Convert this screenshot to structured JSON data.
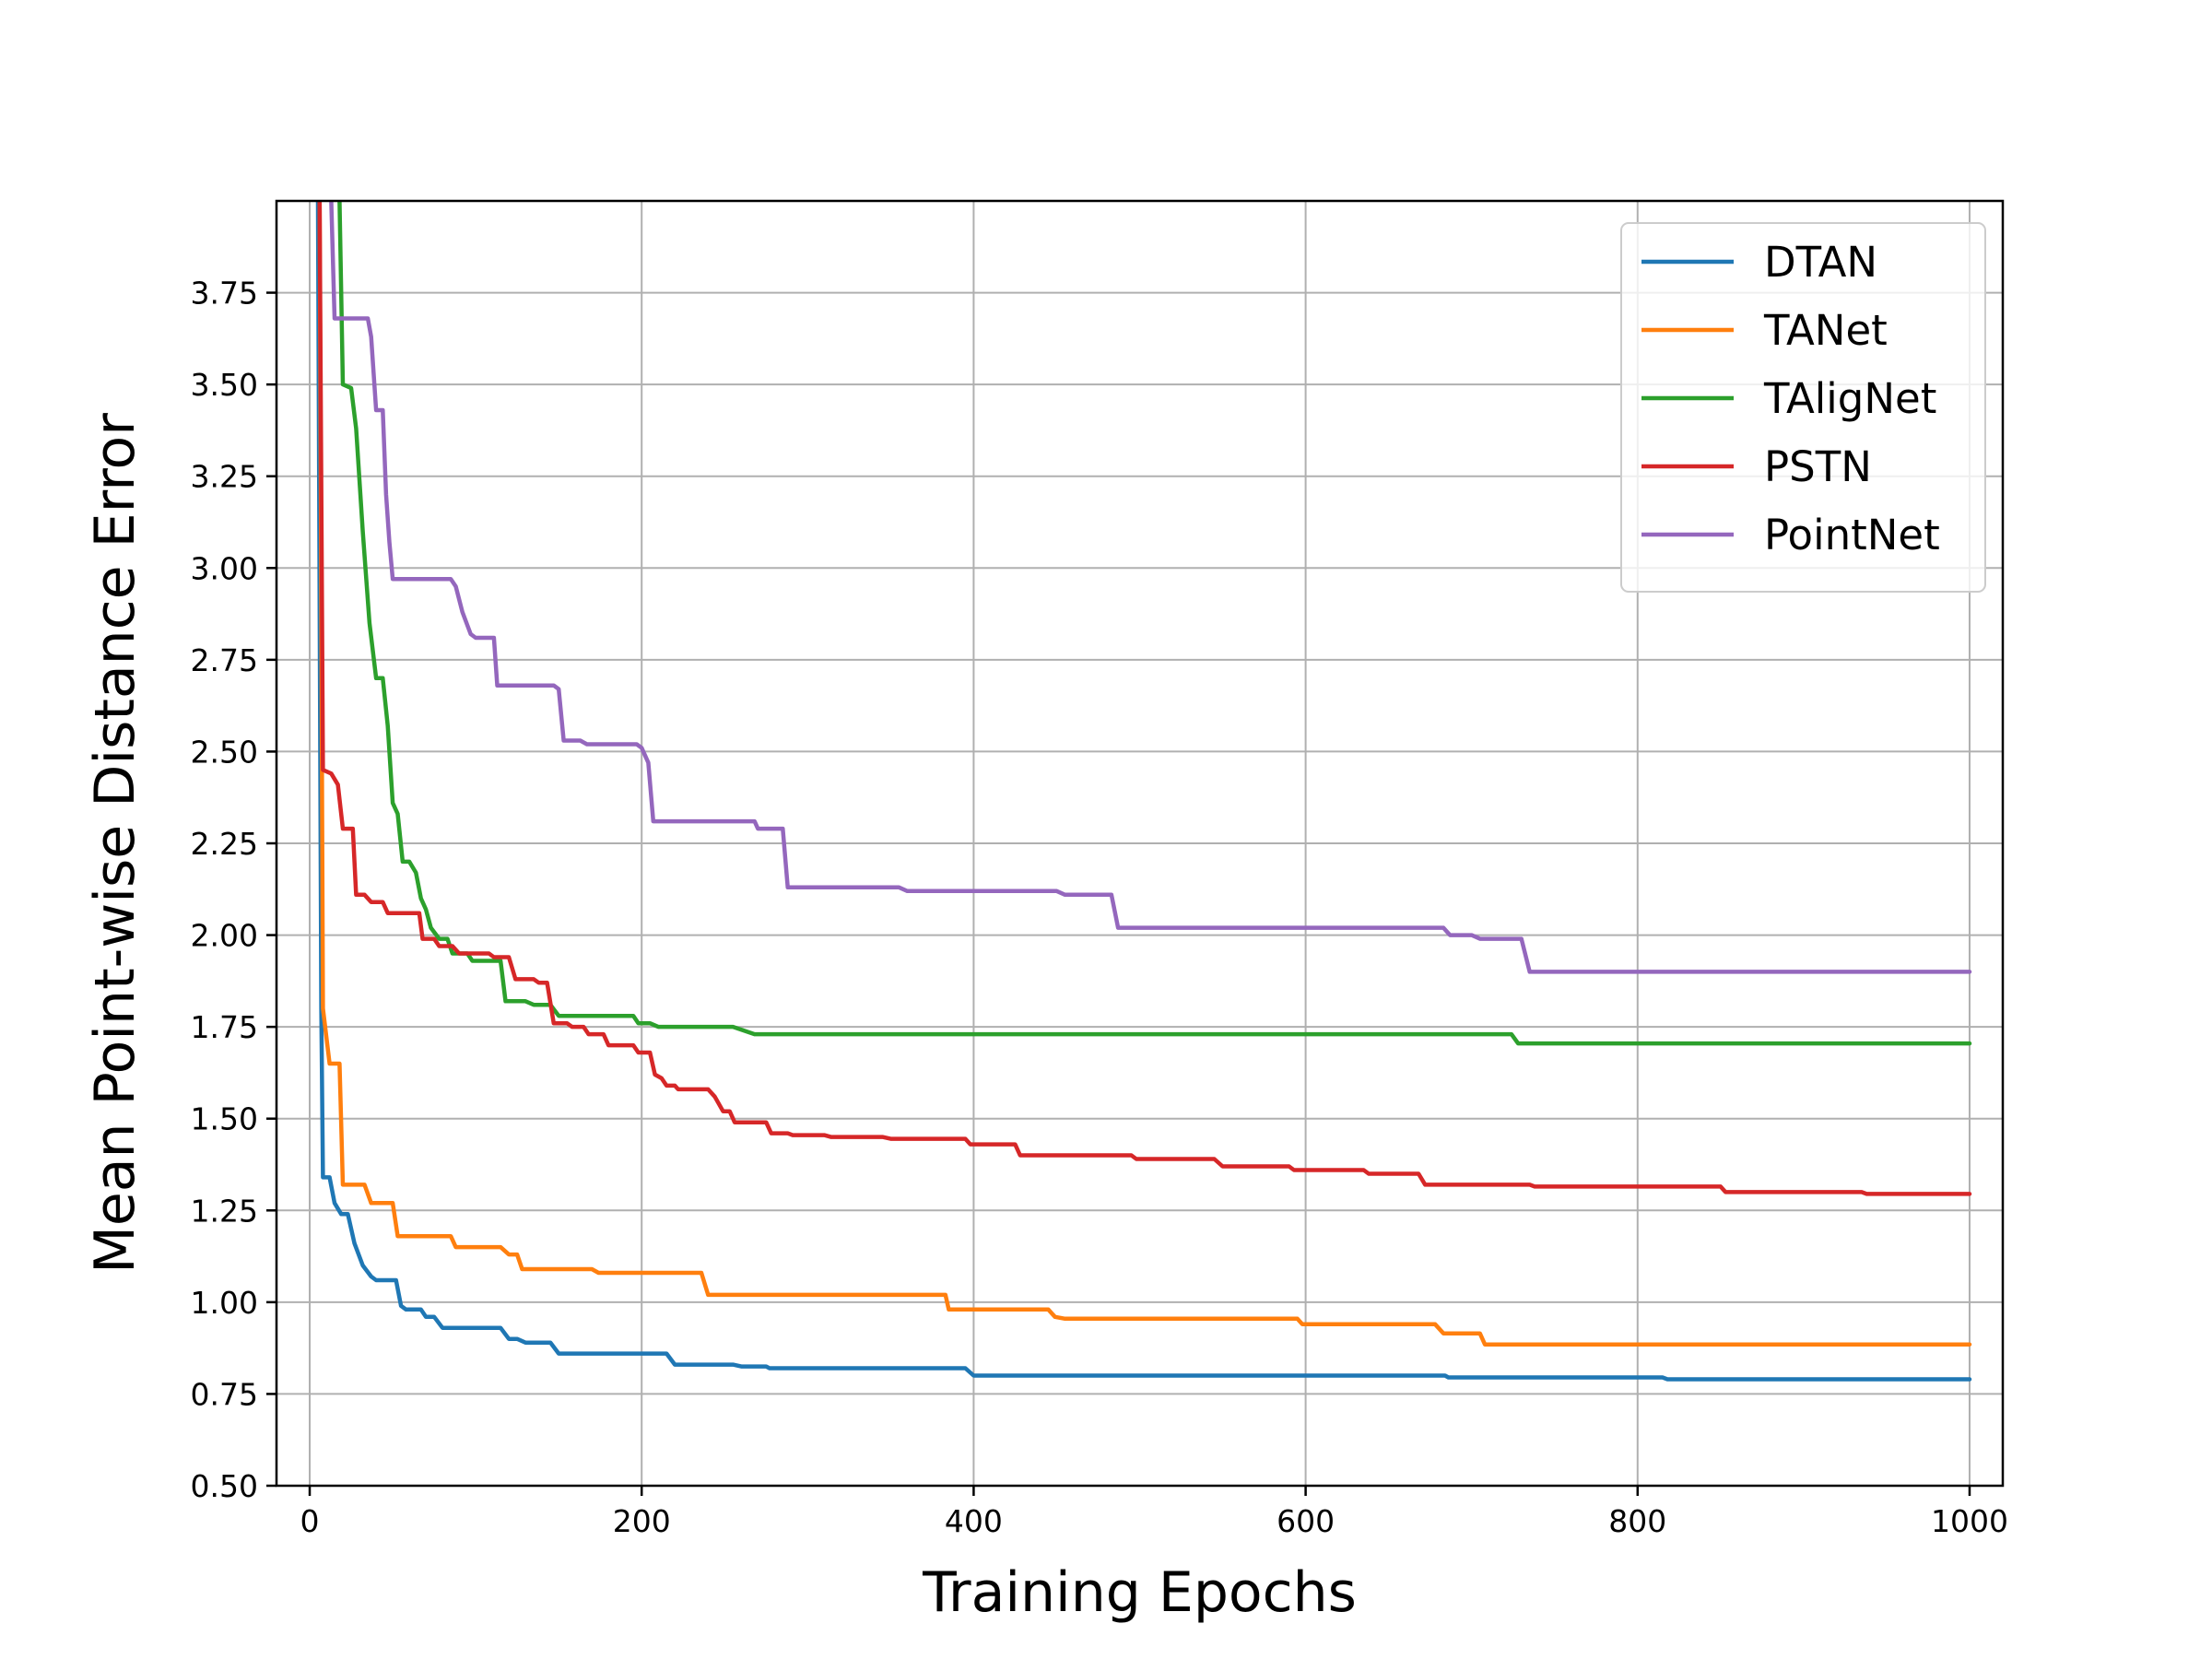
{
  "chart_data": {
    "type": "line",
    "title": "",
    "xlabel": "Training Epochs",
    "ylabel": "Mean Point-wise Distance Error",
    "xlim": [
      -20,
      1020
    ],
    "ylim": [
      0.5,
      4.0
    ],
    "xticks": [
      0,
      200,
      400,
      600,
      800,
      1000
    ],
    "xtick_labels": [
      "0",
      "200",
      "400",
      "600",
      "800",
      "1000"
    ],
    "yticks": [
      0.5,
      0.75,
      1.0,
      1.25,
      1.5,
      1.75,
      2.0,
      2.25,
      2.5,
      2.75,
      3.0,
      3.25,
      3.5,
      3.75
    ],
    "ytick_labels": [
      "0.50",
      "0.75",
      "1.00",
      "1.25",
      "1.50",
      "1.75",
      "2.00",
      "2.25",
      "2.50",
      "2.75",
      "3.00",
      "3.25",
      "3.50",
      "3.75"
    ],
    "grid": true,
    "legend_position": "top-right",
    "series": [
      {
        "name": "DTAN",
        "color": "#1f77b4",
        "points": [
          [
            5,
            4.0
          ],
          [
            7,
            1.8
          ],
          [
            8,
            1.34
          ],
          [
            12,
            1.34
          ],
          [
            15,
            1.27
          ],
          [
            19,
            1.24
          ],
          [
            23,
            1.24
          ],
          [
            27,
            1.16
          ],
          [
            32,
            1.1
          ],
          [
            37,
            1.07
          ],
          [
            40,
            1.06
          ],
          [
            52,
            1.06
          ],
          [
            55,
            0.99
          ],
          [
            58,
            0.98
          ],
          [
            67,
            0.98
          ],
          [
            70,
            0.96
          ],
          [
            75,
            0.96
          ],
          [
            80,
            0.93
          ],
          [
            115,
            0.93
          ],
          [
            120,
            0.9
          ],
          [
            125,
            0.9
          ],
          [
            130,
            0.89
          ],
          [
            140,
            0.89
          ],
          [
            145,
            0.89
          ],
          [
            150,
            0.86
          ],
          [
            215,
            0.86
          ],
          [
            220,
            0.83
          ],
          [
            255,
            0.83
          ],
          [
            260,
            0.825
          ],
          [
            275,
            0.825
          ],
          [
            277,
            0.82
          ],
          [
            395,
            0.82
          ],
          [
            400,
            0.8
          ],
          [
            684,
            0.8
          ],
          [
            686,
            0.795
          ],
          [
            815,
            0.795
          ],
          [
            818,
            0.79
          ],
          [
            1000,
            0.79
          ]
        ]
      },
      {
        "name": "TANet",
        "color": "#ff7f0e",
        "points": [
          [
            6,
            4.0
          ],
          [
            8,
            1.8
          ],
          [
            12,
            1.65
          ],
          [
            18,
            1.65
          ],
          [
            20,
            1.32
          ],
          [
            33,
            1.32
          ],
          [
            37,
            1.27
          ],
          [
            50,
            1.27
          ],
          [
            53,
            1.18
          ],
          [
            85,
            1.18
          ],
          [
            88,
            1.15
          ],
          [
            115,
            1.15
          ],
          [
            120,
            1.13
          ],
          [
            125,
            1.13
          ],
          [
            128,
            1.09
          ],
          [
            170,
            1.09
          ],
          [
            174,
            1.08
          ],
          [
            236,
            1.08
          ],
          [
            240,
            1.02
          ],
          [
            383,
            1.02
          ],
          [
            385,
            0.98
          ],
          [
            445,
            0.98
          ],
          [
            449,
            0.96
          ],
          [
            455,
            0.955
          ],
          [
            595,
            0.955
          ],
          [
            598,
            0.94
          ],
          [
            678,
            0.94
          ],
          [
            683,
            0.915
          ],
          [
            705,
            0.915
          ],
          [
            708,
            0.885
          ],
          [
            1000,
            0.885
          ]
        ]
      },
      {
        "name": "TAligNet",
        "color": "#2ca02c",
        "points": [
          [
            18,
            4.0
          ],
          [
            20,
            3.5
          ],
          [
            25,
            3.49
          ],
          [
            28,
            3.38
          ],
          [
            32,
            3.1
          ],
          [
            36,
            2.85
          ],
          [
            40,
            2.7
          ],
          [
            44,
            2.7
          ],
          [
            47,
            2.57
          ],
          [
            50,
            2.36
          ],
          [
            53,
            2.33
          ],
          [
            56,
            2.2
          ],
          [
            60,
            2.2
          ],
          [
            64,
            2.17
          ],
          [
            67,
            2.1
          ],
          [
            70,
            2.07
          ],
          [
            73,
            2.02
          ],
          [
            78,
            1.99
          ],
          [
            83,
            1.99
          ],
          [
            86,
            1.95
          ],
          [
            95,
            1.95
          ],
          [
            98,
            1.93
          ],
          [
            115,
            1.93
          ],
          [
            118,
            1.82
          ],
          [
            130,
            1.82
          ],
          [
            135,
            1.81
          ],
          [
            145,
            1.81
          ],
          [
            150,
            1.78
          ],
          [
            195,
            1.78
          ],
          [
            198,
            1.76
          ],
          [
            205,
            1.76
          ],
          [
            210,
            1.75
          ],
          [
            255,
            1.75
          ],
          [
            268,
            1.73
          ],
          [
            724,
            1.73
          ],
          [
            728,
            1.705
          ],
          [
            1000,
            1.705
          ]
        ]
      },
      {
        "name": "PSTN",
        "color": "#d62728",
        "points": [
          [
            6,
            4.0
          ],
          [
            8,
            2.45
          ],
          [
            13,
            2.44
          ],
          [
            17,
            2.41
          ],
          [
            20,
            2.29
          ],
          [
            26,
            2.29
          ],
          [
            28,
            2.11
          ],
          [
            33,
            2.11
          ],
          [
            37,
            2.09
          ],
          [
            44,
            2.09
          ],
          [
            47,
            2.06
          ],
          [
            66,
            2.06
          ],
          [
            68,
            1.99
          ],
          [
            75,
            1.99
          ],
          [
            78,
            1.97
          ],
          [
            86,
            1.97
          ],
          [
            90,
            1.95
          ],
          [
            108,
            1.95
          ],
          [
            111,
            1.94
          ],
          [
            120,
            1.94
          ],
          [
            124,
            1.88
          ],
          [
            135,
            1.88
          ],
          [
            138,
            1.87
          ],
          [
            143,
            1.87
          ],
          [
            147,
            1.76
          ],
          [
            155,
            1.76
          ],
          [
            158,
            1.75
          ],
          [
            165,
            1.75
          ],
          [
            168,
            1.73
          ],
          [
            177,
            1.73
          ],
          [
            180,
            1.7
          ],
          [
            195,
            1.7
          ],
          [
            198,
            1.68
          ],
          [
            205,
            1.68
          ],
          [
            208,
            1.62
          ],
          [
            212,
            1.61
          ],
          [
            215,
            1.59
          ],
          [
            220,
            1.59
          ],
          [
            222,
            1.58
          ],
          [
            240,
            1.58
          ],
          [
            244,
            1.56
          ],
          [
            249,
            1.52
          ],
          [
            253,
            1.52
          ],
          [
            256,
            1.49
          ],
          [
            275,
            1.49
          ],
          [
            278,
            1.46
          ],
          [
            288,
            1.46
          ],
          [
            291,
            1.455
          ],
          [
            310,
            1.455
          ],
          [
            314,
            1.45
          ],
          [
            345,
            1.45
          ],
          [
            350,
            1.445
          ],
          [
            395,
            1.445
          ],
          [
            398,
            1.43
          ],
          [
            425,
            1.43
          ],
          [
            428,
            1.4
          ],
          [
            495,
            1.4
          ],
          [
            498,
            1.39
          ],
          [
            545,
            1.39
          ],
          [
            550,
            1.37
          ],
          [
            590,
            1.37
          ],
          [
            593,
            1.36
          ],
          [
            635,
            1.36
          ],
          [
            638,
            1.35
          ],
          [
            668,
            1.35
          ],
          [
            672,
            1.32
          ],
          [
            735,
            1.32
          ],
          [
            738,
            1.315
          ],
          [
            850,
            1.315
          ],
          [
            853,
            1.3
          ],
          [
            935,
            1.3
          ],
          [
            938,
            1.295
          ],
          [
            1000,
            1.295
          ]
        ]
      },
      {
        "name": "PointNet",
        "color": "#9467bd",
        "points": [
          [
            13,
            4.0
          ],
          [
            15,
            3.68
          ],
          [
            35,
            3.68
          ],
          [
            37,
            3.63
          ],
          [
            40,
            3.43
          ],
          [
            44,
            3.43
          ],
          [
            46,
            3.2
          ],
          [
            48,
            3.07
          ],
          [
            50,
            2.97
          ],
          [
            85,
            2.97
          ],
          [
            88,
            2.95
          ],
          [
            92,
            2.88
          ],
          [
            97,
            2.82
          ],
          [
            100,
            2.81
          ],
          [
            111,
            2.81
          ],
          [
            113,
            2.68
          ],
          [
            147,
            2.68
          ],
          [
            150,
            2.67
          ],
          [
            153,
            2.53
          ],
          [
            163,
            2.53
          ],
          [
            167,
            2.52
          ],
          [
            197,
            2.52
          ],
          [
            200,
            2.51
          ],
          [
            204,
            2.47
          ],
          [
            207,
            2.31
          ],
          [
            268,
            2.31
          ],
          [
            270,
            2.29
          ],
          [
            285,
            2.29
          ],
          [
            288,
            2.13
          ],
          [
            355,
            2.13
          ],
          [
            360,
            2.12
          ],
          [
            450,
            2.12
          ],
          [
            455,
            2.11
          ],
          [
            483,
            2.11
          ],
          [
            487,
            2.02
          ],
          [
            683,
            2.02
          ],
          [
            687,
            2.0
          ],
          [
            700,
            2.0
          ],
          [
            705,
            1.99
          ],
          [
            730,
            1.99
          ],
          [
            735,
            1.9
          ],
          [
            1000,
            1.9
          ]
        ]
      }
    ]
  }
}
